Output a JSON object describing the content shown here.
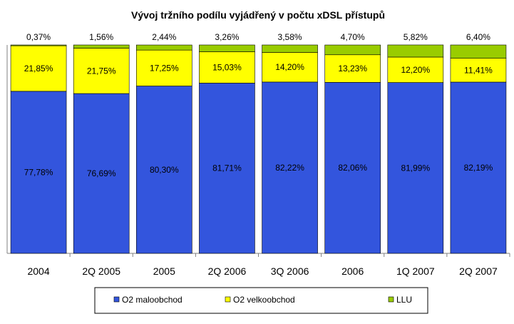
{
  "chart_data": {
    "type": "bar",
    "stacked": true,
    "title": "Vývoj tržního podílu vyjádřený v počtu xDSL přístupů",
    "categories": [
      "2004",
      "2Q 2005",
      "2005",
      "2Q 2006",
      "3Q 2006",
      "2006",
      "1Q 2007",
      "2Q 2007"
    ],
    "series": [
      {
        "name": "O2  maloobchod",
        "color": "#3355dd",
        "values": [
          77.78,
          76.69,
          80.3,
          81.71,
          82.22,
          82.06,
          81.99,
          82.19
        ],
        "labels": [
          "77,78%",
          "76,69%",
          "80,30%",
          "81,71%",
          "82,22%",
          "82,06%",
          "81,99%",
          "82,19%"
        ]
      },
      {
        "name": "O2  velkoobchod",
        "color": "#ffff00",
        "values": [
          21.85,
          21.75,
          17.25,
          15.03,
          14.2,
          13.23,
          12.2,
          11.41
        ],
        "labels": [
          "21,85%",
          "21,75%",
          "17,25%",
          "15,03%",
          "14,20%",
          "13,23%",
          "12,20%",
          "11,41%"
        ]
      },
      {
        "name": "LLU",
        "color": "#99cc00",
        "values": [
          0.37,
          1.56,
          2.44,
          3.26,
          3.58,
          4.7,
          5.82,
          6.4
        ],
        "labels": [
          "0,37%",
          "1,56%",
          "2,44%",
          "3,26%",
          "3,58%",
          "4,70%",
          "5,82%",
          "6,40%"
        ]
      }
    ],
    "ylim": [
      0,
      100
    ],
    "legend_position": "bottom",
    "grid": false
  }
}
